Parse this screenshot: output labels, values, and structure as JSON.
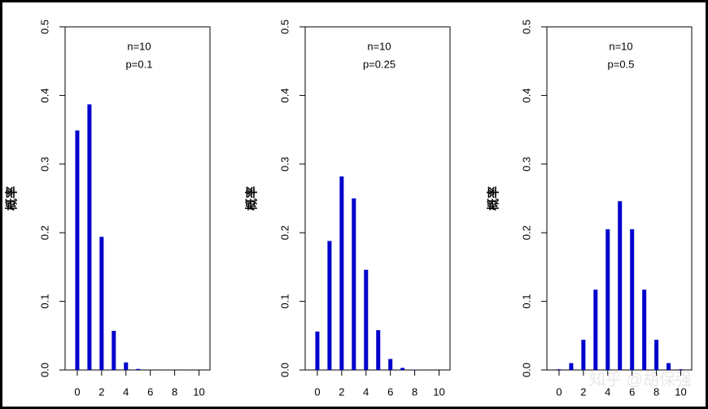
{
  "chart_data": [
    {
      "type": "bar",
      "annotations": [
        "n=10",
        "p=0.1"
      ],
      "y_label": "概率",
      "x": [
        0,
        1,
        2,
        3,
        4,
        5,
        6,
        7,
        8,
        9,
        10
      ],
      "values": [
        0.349,
        0.387,
        0.194,
        0.057,
        0.011,
        0.0015,
        0.0001,
        0,
        0,
        0,
        0
      ],
      "color": "#0000cc",
      "xlim": [
        -1,
        10.9
      ],
      "xticks": [
        0,
        2,
        4,
        6,
        8,
        10
      ],
      "ylim": [
        0,
        0.5
      ],
      "yticks": [
        {
          "value": 0,
          "label": "0.0"
        },
        0.1,
        0.2,
        0.3,
        0.4,
        0.5
      ]
    },
    {
      "type": "bar",
      "annotations": [
        "n=10",
        "p=0.25"
      ],
      "y_label": "概率",
      "x": [
        0,
        1,
        2,
        3,
        4,
        5,
        6,
        7,
        8,
        9,
        10
      ],
      "values": [
        0.056,
        0.188,
        0.282,
        0.25,
        0.146,
        0.058,
        0.016,
        0.003,
        0.0004,
        0,
        0
      ],
      "color": "#0000cc",
      "xlim": [
        -1,
        10.9
      ],
      "xticks": [
        0,
        2,
        4,
        6,
        8,
        10
      ],
      "ylim": [
        0,
        0.5
      ],
      "yticks": [
        {
          "value": 0,
          "label": "0.0"
        },
        0.1,
        0.2,
        0.3,
        0.4,
        0.5
      ]
    },
    {
      "type": "bar",
      "annotations": [
        "n=10",
        "p=0.5"
      ],
      "y_label": "概率",
      "x": [
        0,
        1,
        2,
        3,
        4,
        5,
        6,
        7,
        8,
        9,
        10
      ],
      "values": [
        0.001,
        0.01,
        0.044,
        0.117,
        0.205,
        0.246,
        0.205,
        0.117,
        0.044,
        0.01,
        0.001
      ],
      "color": "#0000cc",
      "xlim": [
        -1,
        10.9
      ],
      "xticks": [
        0,
        2,
        4,
        6,
        8,
        10
      ],
      "ylim": [
        0,
        0.5
      ],
      "yticks": [
        {
          "value": 0,
          "label": "0.0"
        },
        0.1,
        0.2,
        0.3,
        0.4,
        0.5
      ]
    }
  ],
  "watermark": "知乎 @胡保强"
}
